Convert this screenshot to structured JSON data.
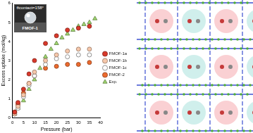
{
  "chart_data": {
    "type": "scatter",
    "x_label": "Pressure (bar)",
    "y_label": "Excess uptake (mol/kg)",
    "xlim": [
      0,
      40
    ],
    "xticks": [
      0,
      5,
      10,
      15,
      20,
      25,
      30,
      35,
      40
    ],
    "ylim": [
      0,
      6
    ],
    "yticks": [
      0,
      1,
      2,
      3,
      4,
      5,
      6
    ],
    "grid": false,
    "legend": "right",
    "inset": {
      "title": "θcontact=158°",
      "label": "FMOF-1"
    },
    "series": [
      {
        "name": "FMOF-1a",
        "color": "#d8392b",
        "marker": "circle",
        "x": [
          1,
          2.5,
          5,
          7.5,
          10,
          15,
          20,
          25,
          30,
          35
        ],
        "values": [
          0.3,
          0.8,
          1.5,
          2.3,
          3.0,
          3.9,
          4.3,
          4.6,
          4.7,
          4.8
        ]
      },
      {
        "name": "FMOF-1b",
        "color": "#f6c7aa",
        "marker": "circle",
        "x": [
          1,
          2.5,
          5,
          7.5,
          10,
          15,
          20,
          25,
          30,
          35
        ],
        "values": [
          0.2,
          0.6,
          1.2,
          1.8,
          2.4,
          3.0,
          3.3,
          3.5,
          3.6,
          3.6
        ]
      },
      {
        "name": "FMOF-1c",
        "color": "#ffffff",
        "marker": "circle",
        "x": [
          1,
          2.5,
          5,
          7.5,
          10,
          15,
          20,
          25,
          30,
          35
        ],
        "values": [
          0.2,
          0.5,
          1.1,
          1.7,
          2.2,
          2.8,
          3.1,
          3.2,
          3.3,
          3.3
        ]
      },
      {
        "name": "FMOF-2",
        "color": "#ec6a2e",
        "marker": "circle",
        "x": [
          1,
          2.5,
          5,
          7.5,
          10,
          15,
          20,
          25,
          30,
          35
        ],
        "values": [
          0.3,
          0.7,
          1.3,
          1.8,
          2.2,
          2.6,
          2.7,
          2.8,
          2.8,
          2.9
        ]
      },
      {
        "name": "Exp.",
        "color": "#9fd66e",
        "marker": "triangle",
        "x": [
          1,
          2.5,
          5,
          7.5,
          10,
          12.5,
          15,
          17.5,
          20,
          22.5,
          25,
          27.5,
          30,
          32.5,
          35,
          37.5
        ],
        "values": [
          0.2,
          0.5,
          0.9,
          1.5,
          2.0,
          2.6,
          3.2,
          3.6,
          3.9,
          4.2,
          4.4,
          4.6,
          4.8,
          4.9,
          5.0,
          5.2
        ]
      }
    ]
  }
}
